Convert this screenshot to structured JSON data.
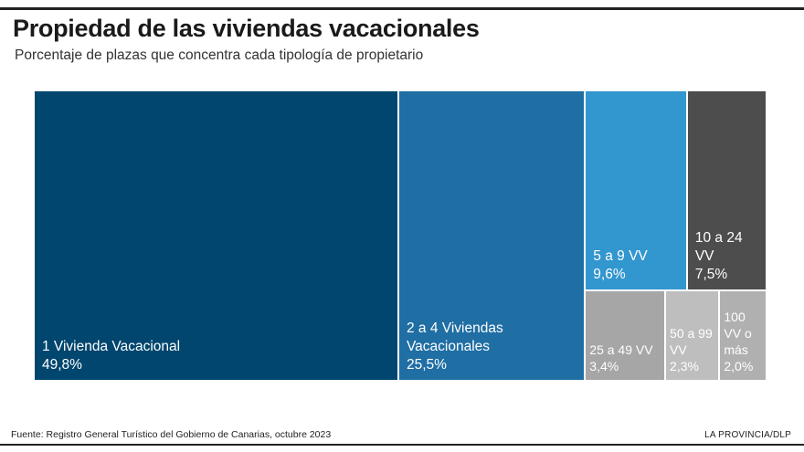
{
  "header": {
    "title": "Propiedad de las viviendas vacacionales",
    "subtitle": "Porcentaje de plazas que concentra cada tipología de propietario"
  },
  "footer": {
    "source": "Fuente: Registro General Turístico del Gobierno de Canarias, octubre 2023",
    "credit": "LA PROVINCIA/DLP"
  },
  "colors": {
    "dark_blue": "#00466f",
    "mid_blue": "#1f6ea4",
    "light_blue": "#3296cf",
    "dark_gray": "#4d4d4d",
    "mid_gray": "#a6a6a6",
    "light_gray": "#bebebe",
    "lighter_gray": "#b0b0b0"
  },
  "chart_data": {
    "type": "treemap",
    "title": "Propiedad de las viviendas vacacionales",
    "subtitle": "Porcentaje de plazas que concentra cada tipología de propietario",
    "unit": "%",
    "items": [
      {
        "label": "1 Vivienda Vacacional",
        "value": 49.8,
        "value_text": "49,8%",
        "color": "#00466f"
      },
      {
        "label": "2 a 4 Viviendas\nVacacionales",
        "value": 25.5,
        "value_text": "25,5%",
        "color": "#1f6ea4"
      },
      {
        "label": "5 a 9 VV",
        "value": 9.6,
        "value_text": "9,6%",
        "color": "#3296cf"
      },
      {
        "label": "10 a 24 VV",
        "value": 7.5,
        "value_text": "7,5%",
        "color": "#4d4d4d"
      },
      {
        "label": "25 a 49 VV",
        "value": 3.4,
        "value_text": "3,4%",
        "color": "#a6a6a6"
      },
      {
        "label": "50 a 99\nVV",
        "value": 2.3,
        "value_text": "2,3%",
        "color": "#bebebe"
      },
      {
        "label": "100\nVV o\nmás",
        "value": 2.0,
        "value_text": "2,0%",
        "color": "#b0b0b0"
      }
    ]
  }
}
